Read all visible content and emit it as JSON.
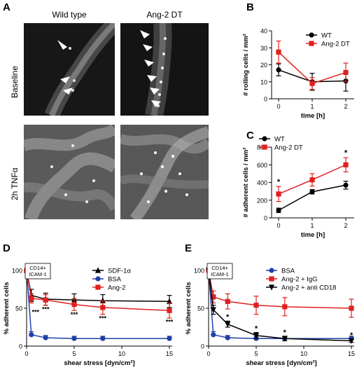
{
  "panel_letters": {
    "a": "A",
    "b": "B",
    "c": "C",
    "d": "D",
    "e": "E"
  },
  "micrographs": {
    "col_headers": [
      "Wild type",
      "Ang-2 DT"
    ],
    "row_headers": [
      "Baseline",
      "2h TNFα"
    ]
  },
  "chart_data": [
    {
      "id": "B",
      "type": "line",
      "x": [
        0,
        1,
        2
      ],
      "xticks": [
        "0",
        "1",
        "2"
      ],
      "xlabel": "time [h]",
      "ylabel": "# rolling cells / mm²",
      "ylim": [
        0,
        40
      ],
      "yticks": [
        0,
        10,
        20,
        30,
        40
      ],
      "legend_position": "top-right",
      "series": [
        {
          "name": "WT",
          "color": "#000000",
          "marker": "circle",
          "values": [
            17,
            10,
            10.5
          ],
          "errors": [
            3.5,
            5,
            6
          ]
        },
        {
          "name": "Ang-2 DT",
          "color": "#e02020",
          "marker": "square",
          "values": [
            27.5,
            9,
            15.5
          ],
          "errors": [
            6.5,
            3.5,
            5.5
          ]
        }
      ],
      "annotations": []
    },
    {
      "id": "C",
      "type": "line",
      "x": [
        0,
        1,
        2
      ],
      "xticks": [
        "0",
        "1",
        "2"
      ],
      "xlabel": "time [h]",
      "ylabel": "# adherent cells / mm²",
      "ylim": [
        0,
        800
      ],
      "yticks": [
        0,
        200,
        400,
        600,
        800
      ],
      "legend_position": "top-left",
      "series": [
        {
          "name": "WT",
          "color": "#000000",
          "marker": "circle",
          "values": [
            85,
            295,
            370
          ],
          "errors": [
            25,
            25,
            45
          ]
        },
        {
          "name": "Ang-2 DT",
          "color": "#e02020",
          "marker": "square",
          "values": [
            270,
            430,
            600
          ],
          "errors": [
            85,
            70,
            80
          ]
        }
      ],
      "annotations": [
        {
          "x": 0,
          "text": "*"
        },
        {
          "x": 2,
          "text": "*"
        }
      ]
    },
    {
      "id": "D",
      "type": "line",
      "x": [
        0,
        0.5,
        2,
        5,
        8,
        15
      ],
      "xticks": [
        "0",
        "5",
        "10",
        "15"
      ],
      "xlabel": "shear stress [dyn/cm²]",
      "ylabel": "% adherent cells",
      "ylim": [
        0,
        100
      ],
      "yticks": [
        0,
        50,
        100
      ],
      "legend_position": "top-right",
      "box_label": [
        "CD14+",
        "ICAM-1"
      ],
      "series": [
        {
          "name": "SDF-1α",
          "color": "#000000",
          "marker": "triangle",
          "values": [
            100,
            67,
            62,
            61,
            60,
            59
          ],
          "errors": [
            0,
            8,
            8,
            8,
            8,
            8
          ]
        },
        {
          "name": "BSA",
          "color": "#1f3fa8",
          "marker": "circle",
          "values": [
            100,
            15,
            11,
            10,
            10,
            10
          ],
          "errors": [
            0,
            4,
            3,
            3,
            3,
            3
          ]
        },
        {
          "name": "Ang-2",
          "color": "#e02020",
          "marker": "square",
          "values": [
            100,
            63,
            61,
            55,
            51,
            47
          ],
          "errors": [
            0,
            6,
            7,
            8,
            9,
            10
          ]
        }
      ],
      "annotations": [
        {
          "x": 0.5,
          "text": "***"
        },
        {
          "x": 2,
          "text": "***"
        },
        {
          "x": 5,
          "text": "***"
        },
        {
          "x": 8,
          "text": "***"
        },
        {
          "x": 15,
          "text": "***"
        }
      ]
    },
    {
      "id": "E",
      "type": "line",
      "x": [
        0,
        0.5,
        2,
        5,
        8,
        15
      ],
      "xticks": [
        "0",
        "5",
        "10",
        "15"
      ],
      "xlabel": "shear stress [dyn/cm²]",
      "ylabel": "% adherent cells",
      "ylim": [
        0,
        100
      ],
      "yticks": [
        0,
        50,
        100
      ],
      "legend_position": "top-right",
      "box_label": [
        "CD14+",
        "ICAM-1"
      ],
      "series": [
        {
          "name": "BSA",
          "color": "#1f3fa8",
          "marker": "circle",
          "values": [
            100,
            15,
            11,
            10,
            10,
            10
          ],
          "errors": [
            0,
            4,
            3,
            3,
            3,
            3
          ]
        },
        {
          "name": "Ang-2 + IgG",
          "color": "#e02020",
          "marker": "square",
          "values": [
            100,
            65,
            59,
            54,
            52,
            50
          ],
          "errors": [
            0,
            8,
            10,
            12,
            12,
            12
          ]
        },
        {
          "name": "Ang-2 + anti CD18",
          "color": "#000000",
          "marker": "triangle-down",
          "values": [
            100,
            48,
            29,
            14,
            10,
            7
          ],
          "errors": [
            0,
            6,
            4,
            4,
            3,
            2
          ]
        }
      ],
      "annotations": [
        {
          "x": 2,
          "text": "*"
        },
        {
          "x": 5,
          "text": "*"
        },
        {
          "x": 8,
          "text": "*"
        },
        {
          "x": 15,
          "text": "*"
        }
      ]
    }
  ]
}
